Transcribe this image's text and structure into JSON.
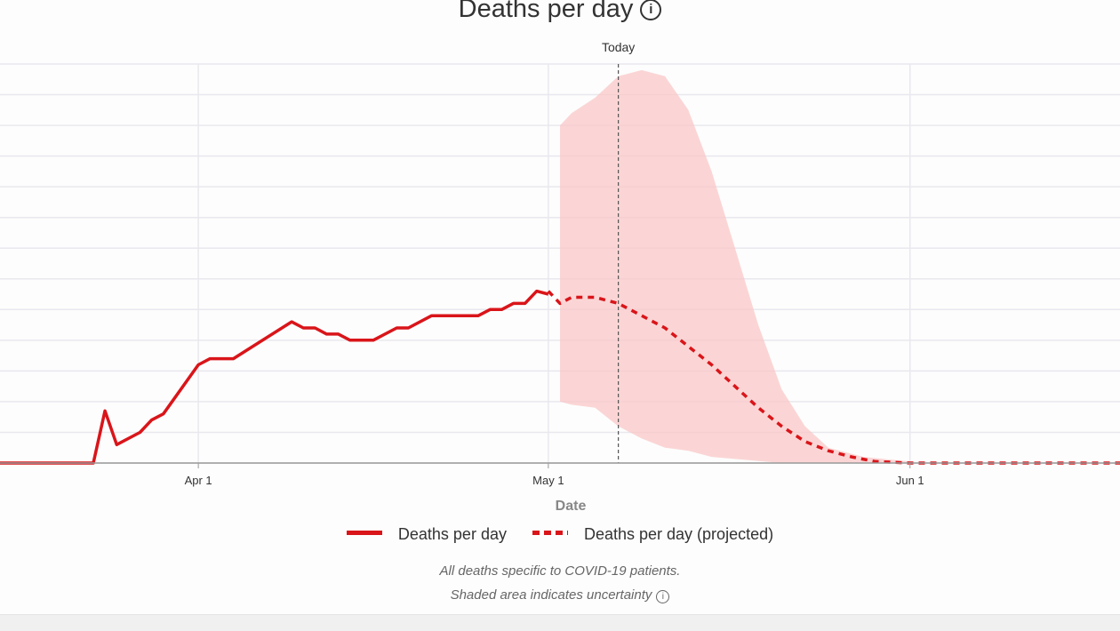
{
  "title": "Deaths per day",
  "today_label": "Today",
  "legend": {
    "actual": "Deaths per day",
    "projected": "Deaths per day (projected)"
  },
  "notes": {
    "line1": "All deaths specific to COVID-19 patients.",
    "line2": "Shaded area indicates uncertainty"
  },
  "colors": {
    "line": "#d9151a",
    "band": "#f9c7c7",
    "grid": "#e8e8ee"
  },
  "chart_data": {
    "type": "line",
    "title": "Deaths per day",
    "xlabel": "Date",
    "ylabel": "",
    "x_ticks": [
      {
        "date": "2020-04-01",
        "label": "Apr 1"
      },
      {
        "date": "2020-05-01",
        "label": "May 1"
      },
      {
        "date": "2020-06-01",
        "label": "Jun 1"
      }
    ],
    "xlim": [
      "2020-03-15",
      "2020-06-19"
    ],
    "ylim": [
      0,
      13
    ],
    "grid": true,
    "legend_position": "bottom-center",
    "today": "2020-05-07",
    "series": [
      {
        "name": "Deaths per day",
        "style": "solid",
        "points": [
          [
            "2020-03-15",
            0
          ],
          [
            "2020-03-23",
            0
          ],
          [
            "2020-03-24",
            1.7
          ],
          [
            "2020-03-25",
            0.6
          ],
          [
            "2020-03-27",
            1.0
          ],
          [
            "2020-03-28",
            1.4
          ],
          [
            "2020-03-29",
            1.6
          ],
          [
            "2020-04-01",
            3.2
          ],
          [
            "2020-04-02",
            3.4
          ],
          [
            "2020-04-04",
            3.4
          ],
          [
            "2020-04-09",
            4.6
          ],
          [
            "2020-04-10",
            4.4
          ],
          [
            "2020-04-11",
            4.4
          ],
          [
            "2020-04-12",
            4.2
          ],
          [
            "2020-04-13",
            4.2
          ],
          [
            "2020-04-14",
            4.0
          ],
          [
            "2020-04-16",
            4.0
          ],
          [
            "2020-04-18",
            4.4
          ],
          [
            "2020-04-19",
            4.4
          ],
          [
            "2020-04-21",
            4.8
          ],
          [
            "2020-04-25",
            4.8
          ],
          [
            "2020-04-26",
            5.0
          ],
          [
            "2020-04-27",
            5.0
          ],
          [
            "2020-04-28",
            5.2
          ],
          [
            "2020-04-29",
            5.2
          ],
          [
            "2020-04-30",
            5.6
          ],
          [
            "2020-05-01",
            5.5
          ]
        ]
      },
      {
        "name": "Deaths per day (projected)",
        "style": "dashed",
        "points": [
          [
            "2020-05-01",
            5.6
          ],
          [
            "2020-05-02",
            5.2
          ],
          [
            "2020-05-03",
            5.4
          ],
          [
            "2020-05-05",
            5.4
          ],
          [
            "2020-05-07",
            5.2
          ],
          [
            "2020-05-09",
            4.8
          ],
          [
            "2020-05-11",
            4.4
          ],
          [
            "2020-05-13",
            3.8
          ],
          [
            "2020-05-15",
            3.2
          ],
          [
            "2020-05-17",
            2.5
          ],
          [
            "2020-05-19",
            1.8
          ],
          [
            "2020-05-21",
            1.2
          ],
          [
            "2020-05-23",
            0.7
          ],
          [
            "2020-05-25",
            0.4
          ],
          [
            "2020-05-27",
            0.2
          ],
          [
            "2020-05-29",
            0.05
          ],
          [
            "2020-06-01",
            0
          ],
          [
            "2020-06-19",
            0
          ]
        ]
      }
    ],
    "uncertainty_band": {
      "upper": [
        [
          "2020-05-02",
          11.0
        ],
        [
          "2020-05-03",
          11.4
        ],
        [
          "2020-05-05",
          11.9
        ],
        [
          "2020-05-07",
          12.6
        ],
        [
          "2020-05-09",
          12.8
        ],
        [
          "2020-05-11",
          12.6
        ],
        [
          "2020-05-13",
          11.5
        ],
        [
          "2020-05-15",
          9.5
        ],
        [
          "2020-05-17",
          7.0
        ],
        [
          "2020-05-19",
          4.5
        ],
        [
          "2020-05-21",
          2.4
        ],
        [
          "2020-05-23",
          1.2
        ],
        [
          "2020-05-25",
          0.5
        ],
        [
          "2020-05-28",
          0.2
        ],
        [
          "2020-06-01",
          0.05
        ]
      ],
      "lower": [
        [
          "2020-06-01",
          0
        ],
        [
          "2020-05-21",
          0
        ],
        [
          "2020-05-15",
          0.2
        ],
        [
          "2020-05-13",
          0.4
        ],
        [
          "2020-05-11",
          0.5
        ],
        [
          "2020-05-09",
          0.8
        ],
        [
          "2020-05-07",
          1.2
        ],
        [
          "2020-05-05",
          1.8
        ],
        [
          "2020-05-03",
          1.9
        ],
        [
          "2020-05-02",
          2.0
        ]
      ]
    }
  }
}
